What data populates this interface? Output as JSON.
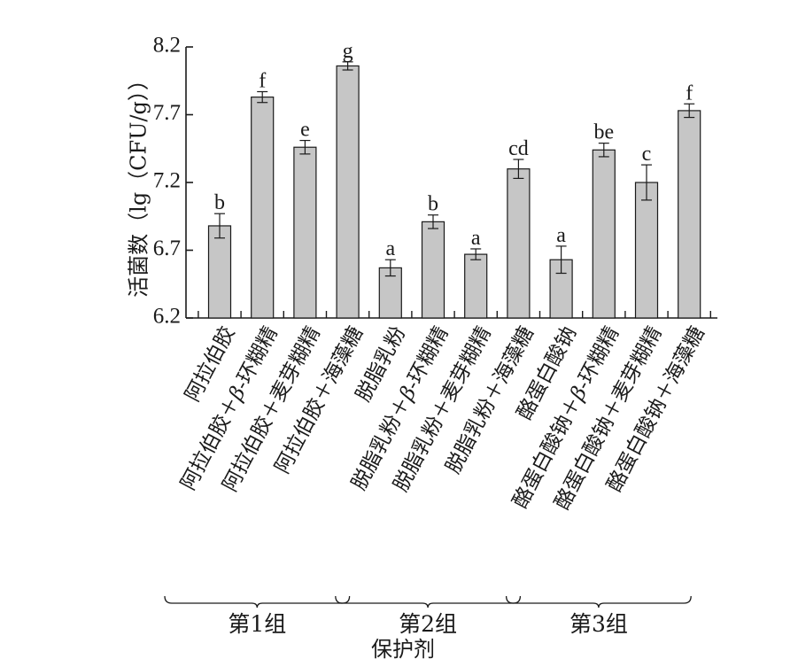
{
  "chart_data": {
    "type": "bar",
    "ylabel": "活菌数（lg（CFU/g））",
    "xlabel": "保护剂",
    "ylim": [
      6.2,
      8.2
    ],
    "yticks": [
      "6.2",
      "6.7",
      "7.2",
      "7.7",
      "8.2"
    ],
    "categories": [
      "阿拉伯胶",
      "阿拉伯胶＋β-环糊精",
      "阿拉伯胶＋麦芽糊精",
      "阿拉伯胶＋海藻糖",
      "脱脂乳粉",
      "脱脂乳粉＋β-环糊精",
      "脱脂乳粉＋麦芽糊精",
      "脱脂乳粉＋海藻糖",
      "酪蛋白酸钠",
      "酪蛋白酸钠＋β-环糊精",
      "酪蛋白酸钠＋麦芽糊精",
      "酪蛋白酸钠＋海藻糖"
    ],
    "values": [
      6.88,
      7.83,
      7.46,
      8.06,
      6.57,
      6.91,
      6.67,
      7.3,
      6.63,
      7.44,
      7.2,
      7.73
    ],
    "errors": [
      0.09,
      0.04,
      0.05,
      0.03,
      0.06,
      0.05,
      0.04,
      0.07,
      0.1,
      0.05,
      0.13,
      0.05
    ],
    "significance": [
      "b",
      "f",
      "e",
      "g",
      "a",
      "b",
      "a",
      "cd",
      "a",
      "be",
      "c",
      "f"
    ],
    "groups": [
      {
        "label": "第1组",
        "start": 0,
        "end": 3
      },
      {
        "label": "第2组",
        "start": 4,
        "end": 7
      },
      {
        "label": "第3组",
        "start": 8,
        "end": 11
      }
    ],
    "bar_color": "#c6c6c6",
    "grid": false,
    "legend": "none"
  }
}
